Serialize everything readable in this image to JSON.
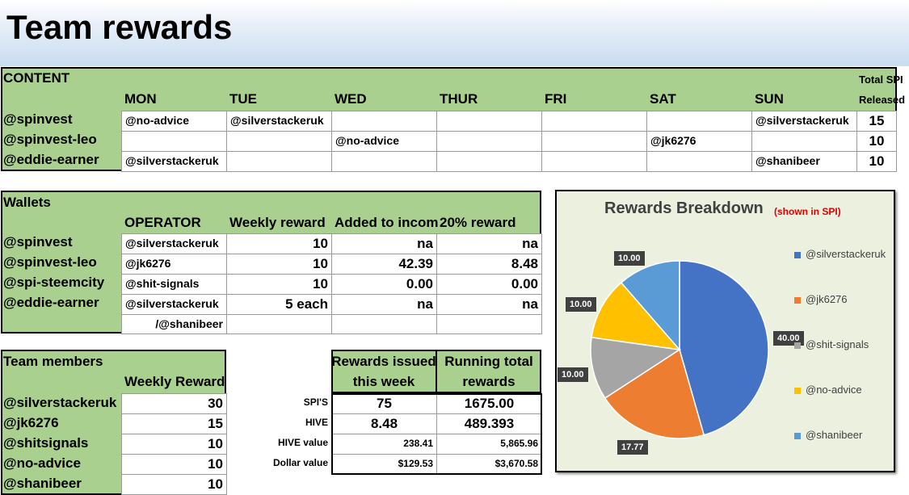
{
  "title": "Team rewards",
  "content": {
    "heading": "CONTENT",
    "total_header_1": "Total SPI",
    "total_header_2": "Released",
    "days": [
      "MON",
      "TUE",
      "WED",
      "THUR",
      "FRI",
      "SAT",
      "SUN"
    ],
    "rows": [
      {
        "account": "@spinvest",
        "cells": [
          "@no-advice",
          "@silverstackeruk",
          "",
          "",
          "",
          "",
          "@silverstackeruk"
        ],
        "total": "15"
      },
      {
        "account": "@spinvest-leo",
        "cells": [
          "",
          "",
          "@no-advice",
          "",
          "",
          "@jk6276",
          ""
        ],
        "total": "10"
      },
      {
        "account": "@eddie-earner",
        "cells": [
          "@silverstackeruk",
          "",
          "",
          "",
          "",
          "",
          "@shanibeer"
        ],
        "total": "10"
      }
    ]
  },
  "wallets": {
    "heading": "Wallets",
    "col_operator": "OPERATOR",
    "col_weekly": "Weekly reward",
    "col_added": "Added to incom",
    "col_twenty": "20% reward",
    "rows": [
      {
        "account": "@spinvest",
        "operator": "@silverstackeruk",
        "weekly": "10",
        "added": "na",
        "twenty": "na"
      },
      {
        "account": "@spinvest-leo",
        "operator": "@jk6276",
        "weekly": "10",
        "added": "42.39",
        "twenty": "8.48"
      },
      {
        "account": "@spi-steemcity",
        "operator": "@shit-signals",
        "weekly": "10",
        "added": "0.00",
        "twenty": "0.00"
      },
      {
        "account": "@eddie-earner",
        "operator": "@silverstackeruk",
        "weekly": "5 each",
        "added": "na",
        "twenty": "na"
      }
    ],
    "extra_operator": "/@shanibeer"
  },
  "team": {
    "heading": "Team members",
    "col_weekly": "Weekly Reward",
    "members": [
      {
        "name": "@silverstackeruk",
        "reward": "30"
      },
      {
        "name": "@jk6276",
        "reward": "15"
      },
      {
        "name": "@shitsignals",
        "reward": "10"
      },
      {
        "name": "@no-advice",
        "reward": "10"
      },
      {
        "name": "@shanibeer",
        "reward": "10"
      }
    ]
  },
  "rewards": {
    "col_issued_1": "Rewards issued",
    "col_issued_2": "this week",
    "col_total_1": "Running total",
    "col_total_2": "rewards",
    "rows": [
      {
        "label": "SPI'S",
        "issued": "75",
        "total": "1675.00"
      },
      {
        "label": "HIVE",
        "issued": "8.48",
        "total": "489.393"
      },
      {
        "label": "HIVE value",
        "issued": "238.41",
        "total": "5,865.96"
      },
      {
        "label": "Dollar value",
        "issued": "$129.53",
        "total": "$3,670.58"
      }
    ]
  },
  "chart_data": {
    "type": "pie",
    "title": "Rewards Breakdown",
    "subtitle": "(shown in SPI)",
    "legend_position": "right",
    "slices": [
      {
        "label": "@silverstackeruk",
        "value": 40.0,
        "display": "40.00",
        "color": "#4472c4"
      },
      {
        "label": "@jk6276",
        "value": 17.77,
        "display": "17.77",
        "color": "#ed7d31"
      },
      {
        "label": "@shit-signals",
        "value": 10.0,
        "display": "10.00",
        "color": "#a5a5a5"
      },
      {
        "label": "@no-advice",
        "value": 10.0,
        "display": "10.00",
        "color": "#ffc000"
      },
      {
        "label": "@shanibeer",
        "value": 10.0,
        "display": "10.00",
        "color": "#5b9bd5"
      }
    ]
  }
}
